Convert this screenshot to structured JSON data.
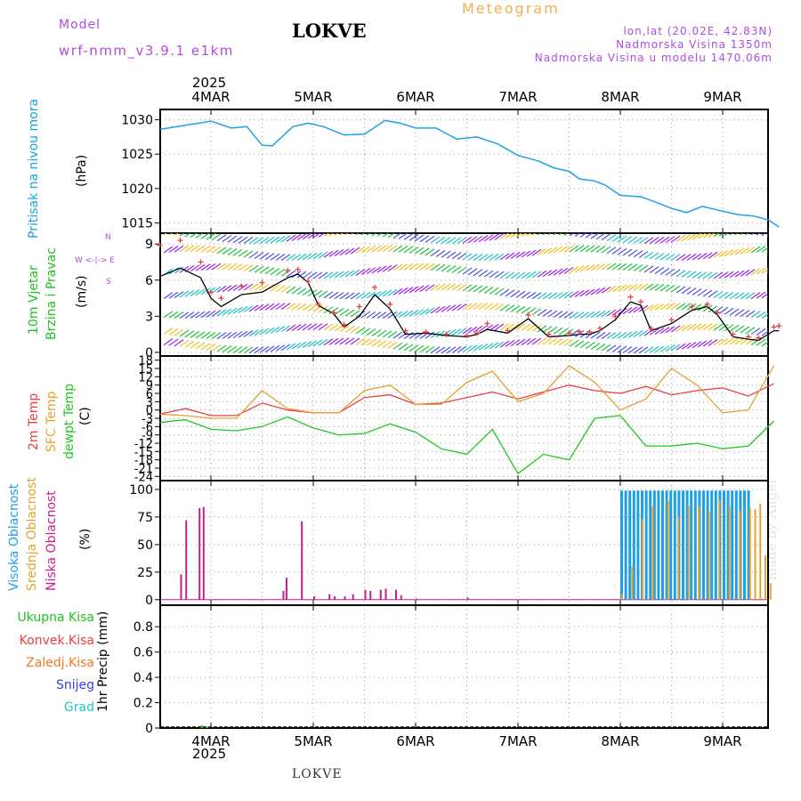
{
  "header": {
    "model_label": "Model",
    "model_name": "wrf-nmm_v3.9.1  e1km",
    "station": "LOKVE",
    "title": "Meteogram",
    "coords": "lon,lat (20.02E, 42.83N)",
    "elevation": "Nadmorska Visina 1350m",
    "model_elevation": "Nadmorska Visina u modelu 1470.06m",
    "footer_station": "LOKVE",
    "made_by": "made by Angel"
  },
  "axis_dates": {
    "year": "2025",
    "days": [
      "4MAR",
      "5MAR",
      "6MAR",
      "7MAR",
      "8MAR",
      "9MAR"
    ]
  },
  "panel_labels": {
    "pressure": {
      "name": "Pritisak na nivou mora",
      "unit": "(hPa)"
    },
    "wind": {
      "name1": "10m Vjetar",
      "name2": "Brzina i Pravac",
      "unit": "(m/s)",
      "compass": "W <-|-> E",
      "compass_n": "N",
      "compass_s": "S"
    },
    "temp": {
      "t2m": "2m Temp",
      "sfc": "SFC Temp",
      "dew": "dewpt Temp",
      "unit": "(C)"
    },
    "cloud": {
      "high": "Visoka Oblacnost",
      "mid": "Srednja Oblacnost",
      "low": "Niska Oblacnost",
      "unit": "(%)"
    },
    "precip": {
      "total": "Ukupna Kisa",
      "conv": "Konvek.Kisa",
      "frozen": "Zaledj.Kisa",
      "snow": "Snijeg",
      "grad": "Grad",
      "unit": "1hr Precip (mm)"
    }
  },
  "colors": {
    "pressure": "#1ea0e6",
    "t2m": "#e84040",
    "sfc": "#e8a030",
    "dew": "#20c820",
    "high_cloud": "#1ea0e6",
    "mid_cloud": "#e8a030",
    "low_cloud": "#c81e8c",
    "label_green": "#20c020",
    "label_red": "#e84040",
    "label_orange": "#f07820",
    "label_blue": "#3a3ae6",
    "label_cyan": "#20c8c8",
    "label_purple": "#b04ce0"
  },
  "chart_data": [
    {
      "type": "line",
      "id": "pressure",
      "ylabel": "(hPa)",
      "yticks": [
        1015,
        1020,
        1025,
        1030
      ],
      "ylim": [
        1013.5,
        1031.5
      ],
      "x_days": [
        -0.5,
        0.0,
        0.2,
        0.35,
        0.5,
        0.6,
        0.8,
        0.95,
        1.1,
        1.3,
        1.5,
        1.7,
        1.85,
        2.0,
        2.2,
        2.4,
        2.6,
        2.8,
        3.0,
        3.2,
        3.35,
        3.5,
        3.6,
        3.75,
        3.85,
        4.0,
        4.2,
        4.35,
        4.5,
        4.65,
        4.8,
        5.0,
        5.15,
        5.3,
        5.45,
        5.55
      ],
      "series": [
        {
          "values": [
            1028.6,
            1029.8,
            1028.8,
            1029.0,
            1026.3,
            1026.2,
            1029.0,
            1029.5,
            1029.0,
            1027.8,
            1027.9,
            1029.9,
            1029.5,
            1028.8,
            1028.8,
            1027.2,
            1027.5,
            1026.5,
            1024.8,
            1024.0,
            1023.0,
            1022.5,
            1021.4,
            1021.1,
            1020.5,
            1019.0,
            1018.8,
            1018.0,
            1017.1,
            1016.5,
            1017.4,
            1016.7,
            1016.2,
            1016.0,
            1015.4,
            1014.4
          ]
        }
      ]
    },
    {
      "type": "line",
      "id": "wind",
      "ylabel": "(m/s)",
      "yticks": [
        0,
        3,
        6,
        9
      ],
      "ylim": [
        -0.3,
        9.9
      ],
      "x_days": [
        -0.5,
        -0.3,
        -0.1,
        0.0,
        0.1,
        0.3,
        0.5,
        0.75,
        0.85,
        0.95,
        1.05,
        1.2,
        1.3,
        1.45,
        1.6,
        1.75,
        1.9,
        2.1,
        2.3,
        2.5,
        2.6,
        2.7,
        2.9,
        3.1,
        3.3,
        3.5,
        3.6,
        3.7,
        3.8,
        3.95,
        4.1,
        4.2,
        4.3,
        4.5,
        4.7,
        4.85,
        4.95,
        5.1,
        5.25,
        5.35,
        5.5,
        5.55
      ],
      "series": [
        {
          "values": [
            6.3,
            7.0,
            6.2,
            4.5,
            3.8,
            4.8,
            5.0,
            6.2,
            6.5,
            5.8,
            3.9,
            3.2,
            2.1,
            3.0,
            4.8,
            3.6,
            1.5,
            1.6,
            1.4,
            1.3,
            1.5,
            1.9,
            1.6,
            2.8,
            1.3,
            1.4,
            1.5,
            1.5,
            1.8,
            2.7,
            4.2,
            3.9,
            1.8,
            2.4,
            3.5,
            3.8,
            3.1,
            1.3,
            1.1,
            1.0,
            1.8,
            1.8
          ]
        },
        {
          "values": [
            8.9,
            9.3,
            7.5,
            5.0,
            4.5,
            5.5,
            5.8,
            6.8,
            6.9,
            5.9,
            4.0,
            3.3,
            2.3,
            3.8,
            5.4,
            4.0,
            1.8,
            1.7,
            1.5,
            1.4,
            1.6,
            2.4,
            1.8,
            3.1,
            1.5,
            1.6,
            1.7,
            1.7,
            2.0,
            3.0,
            4.6,
            4.2,
            2.0,
            2.7,
            3.8,
            4.0,
            3.3,
            1.5,
            1.3,
            1.2,
            2.1,
            2.2
          ]
        }
      ]
    },
    {
      "type": "line",
      "id": "temp",
      "ylabel": "(C)",
      "yticks": [
        -24,
        -21,
        -18,
        -15,
        -12,
        -9,
        -6,
        -3,
        0,
        3,
        6,
        9,
        12,
        15,
        18
      ],
      "ytick_labels": [
        "-24",
        "-21",
        "-18",
        "-15",
        "-12",
        "-9",
        "-6",
        "-3",
        "0",
        "3",
        "6",
        "9",
        "12",
        "15",
        "18"
      ],
      "ylim": [
        -25.5,
        19.5
      ],
      "x_days": [
        -0.5,
        -0.25,
        0.0,
        0.25,
        0.5,
        0.75,
        1.0,
        1.25,
        1.5,
        1.75,
        2.0,
        2.25,
        2.5,
        2.75,
        3.0,
        3.25,
        3.5,
        3.75,
        4.0,
        4.25,
        4.5,
        4.75,
        5.0,
        5.25,
        5.5
      ],
      "series": [
        {
          "name": "2m Temp",
          "values": [
            -1.5,
            0.5,
            -2.0,
            -2.0,
            2.5,
            0.0,
            -1.0,
            -1.0,
            4.5,
            5.5,
            2.0,
            2.5,
            4.5,
            6.5,
            4.0,
            6.5,
            9.0,
            7.0,
            6.0,
            8.5,
            5.5,
            7.0,
            8.0,
            5.0,
            9.5
          ]
        },
        {
          "name": "SFC Temp",
          "values": [
            -1.5,
            -2.0,
            -3.0,
            -3.0,
            7.0,
            0.5,
            -1.0,
            -1.0,
            7.0,
            9.0,
            2.0,
            2.0,
            10.0,
            14.0,
            3.0,
            6.0,
            16.0,
            10.0,
            0.0,
            4.0,
            15.0,
            9.0,
            -1.0,
            0.0,
            16.0
          ]
        },
        {
          "name": "dewpt Temp",
          "values": [
            -4.5,
            -3.5,
            -7.0,
            -7.5,
            -6.0,
            -2.5,
            -6.5,
            -9.0,
            -8.5,
            -5.0,
            -8.0,
            -14.0,
            -16.0,
            -7.0,
            -23.0,
            -16.0,
            -18.0,
            -3.0,
            -2.0,
            -13.0,
            -13.0,
            -12.0,
            -14.0,
            -13.0,
            -4.0
          ]
        }
      ]
    },
    {
      "type": "bar",
      "id": "cloud",
      "ylabel": "(%)",
      "yticks": [
        0,
        25,
        50,
        75,
        100
      ],
      "ylim": [
        -5,
        108
      ],
      "low_bars": [
        [
          -0.3,
          23
        ],
        [
          -0.25,
          72
        ],
        [
          -0.12,
          83
        ],
        [
          -0.08,
          84
        ],
        [
          0.7,
          8
        ],
        [
          0.73,
          20
        ],
        [
          0.88,
          71
        ],
        [
          1.0,
          3
        ],
        [
          1.15,
          5
        ],
        [
          1.2,
          3
        ],
        [
          1.3,
          3
        ],
        [
          1.38,
          5
        ],
        [
          1.5,
          9
        ],
        [
          1.55,
          8
        ],
        [
          1.65,
          9
        ],
        [
          1.7,
          10
        ],
        [
          1.8,
          9
        ],
        [
          1.85,
          4
        ],
        [
          2.0,
          1
        ],
        [
          2.5,
          2
        ]
      ],
      "high_cloud_x_range": [
        4.0,
        5.28
      ],
      "high_cloud_value": 99,
      "mid_bars": [
        [
          4.0,
          5
        ],
        [
          4.1,
          30
        ],
        [
          4.2,
          73
        ],
        [
          4.3,
          85
        ],
        [
          4.45,
          90
        ],
        [
          4.55,
          75
        ],
        [
          4.65,
          85
        ],
        [
          4.75,
          85
        ],
        [
          4.85,
          80
        ],
        [
          4.95,
          90
        ],
        [
          5.05,
          85
        ],
        [
          5.15,
          80
        ],
        [
          5.25,
          83
        ],
        [
          5.3,
          82
        ],
        [
          5.35,
          87
        ],
        [
          5.4,
          40
        ],
        [
          5.45,
          15
        ]
      ]
    },
    {
      "type": "bar",
      "id": "precip",
      "ylabel": "1hr Precip (mm)",
      "yticks": [
        0,
        0.2,
        0.4,
        0.6,
        0.8
      ],
      "ylim": [
        0,
        0.97
      ],
      "bars": [
        [
          -0.1,
          0.02
        ],
        [
          -0.05,
          0.01
        ]
      ]
    }
  ]
}
